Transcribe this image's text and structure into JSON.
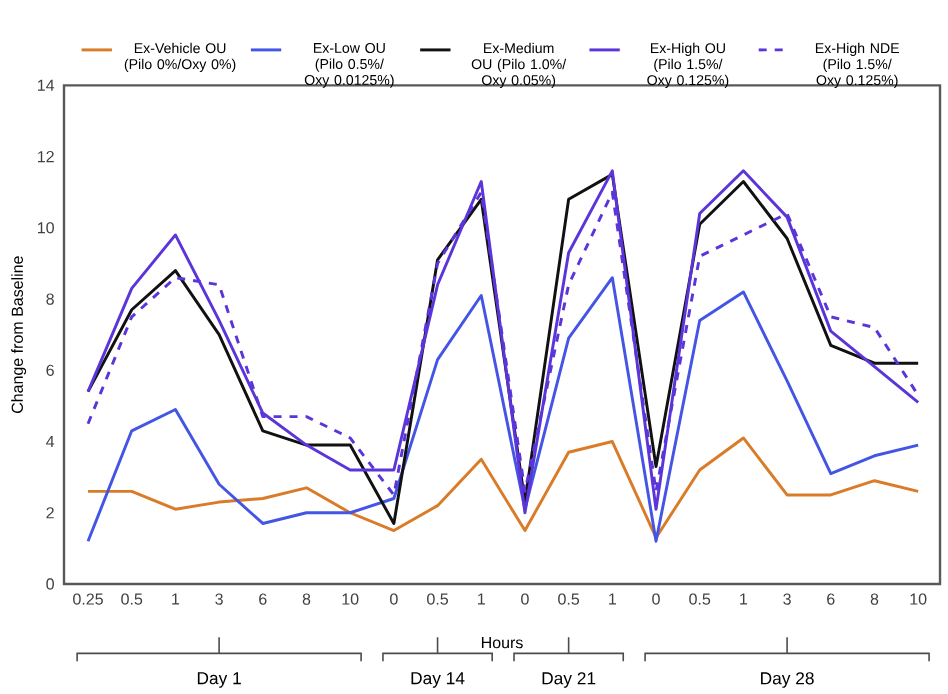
{
  "chart_data": {
    "type": "line",
    "ylabel": "Change from Baseline",
    "xlabel": "Hours",
    "legend": "top",
    "categories": [
      "0.25",
      "0.5",
      "1",
      "3",
      "6",
      "8",
      "10",
      "0",
      "0.5",
      "1",
      "0",
      "0.5",
      "1",
      "0",
      "0.5",
      "1",
      "3",
      "6",
      "8",
      "10"
    ],
    "ylim": [
      0,
      14
    ],
    "yticks": [
      0,
      2,
      4,
      6,
      8,
      10,
      12,
      14
    ],
    "grid": false,
    "marker": "none",
    "series": [
      {
        "name": "Ex-Vehicle OU (Pilo 0%/Oxy 0%)",
        "color": "#d97b27",
        "line_style": "solid",
        "values": [
          2.6,
          2.6,
          2.1,
          2.3,
          2.4,
          2.7,
          2.0,
          1.5,
          2.2,
          3.5,
          1.5,
          3.7,
          4.0,
          1.3,
          3.2,
          4.1,
          2.5,
          2.5,
          2.9,
          2.6
        ]
      },
      {
        "name": "Ex-Low OU (Pilo 0.5%/ Oxy 0.0125%)",
        "color": "#4455e6",
        "line_style": "solid",
        "values": [
          1.2,
          4.3,
          4.9,
          2.8,
          1.7,
          2.0,
          2.0,
          2.4,
          6.3,
          8.1,
          2.1,
          6.9,
          8.6,
          1.2,
          7.4,
          8.2,
          5.7,
          3.1,
          3.6,
          3.9
        ]
      },
      {
        "name": "Ex-Medium OU (Pilo 1.0%/ Oxy 0.05%)",
        "color": "#111111",
        "line_style": "solid",
        "values": [
          5.4,
          7.7,
          8.8,
          7.0,
          4.3,
          3.9,
          3.9,
          1.7,
          9.1,
          10.8,
          2.3,
          10.8,
          11.5,
          3.3,
          10.1,
          11.3,
          9.7,
          6.7,
          6.2,
          6.2
        ]
      },
      {
        "name": "Ex-High OU (Pilo 1.5%/ Oxy 0.125%)",
        "color": "#5b35d9",
        "line_style": "solid",
        "values": [
          5.4,
          8.3,
          9.8,
          7.4,
          4.8,
          3.9,
          3.2,
          3.2,
          8.4,
          11.3,
          2.0,
          9.3,
          11.6,
          2.1,
          10.4,
          11.6,
          10.3,
          7.1,
          6.1,
          5.1
        ]
      },
      {
        "name": "Ex-High NDE (Pilo 1.5%/ Oxy 0.125%)",
        "color": "#5b35d9",
        "line_style": "dashed",
        "values": [
          4.5,
          7.5,
          8.6,
          8.4,
          4.7,
          4.7,
          4.1,
          2.5,
          9.0,
          11.0,
          2.6,
          8.4,
          11.0,
          2.6,
          9.2,
          9.8,
          10.4,
          7.5,
          7.2,
          5.3
        ]
      }
    ],
    "annotations": [
      "Day 1",
      "Day 14",
      "Day 21",
      "Day 28"
    ]
  }
}
